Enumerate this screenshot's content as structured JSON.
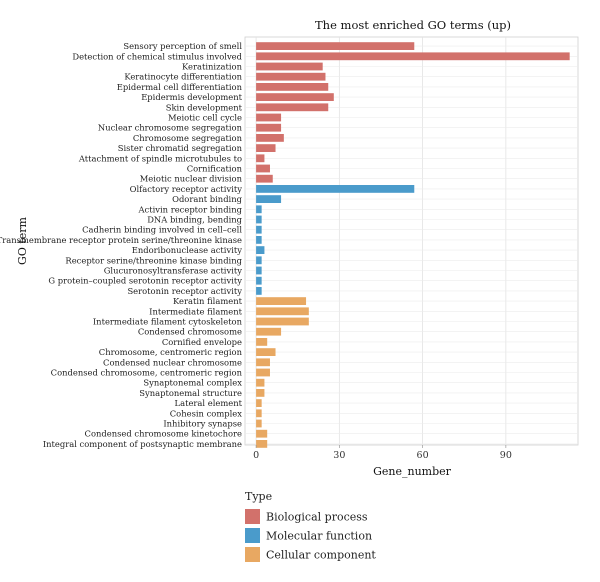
{
  "chart_data": {
    "type": "bar",
    "orientation": "horizontal",
    "title": "The most enriched GO terms (up)",
    "xlabel": "Gene_number",
    "ylabel": "GO term",
    "xlim": [
      -4,
      116
    ],
    "xticks": [
      0,
      30,
      60,
      90
    ],
    "grid": true,
    "legend": {
      "title": "Type",
      "position": "bottom-left",
      "entries": [
        {
          "name": "Biological process",
          "color": "#d2716b"
        },
        {
          "name": "Molecular function",
          "color": "#4a9bcb"
        },
        {
          "name": "Cellular component",
          "color": "#e8a862"
        }
      ]
    },
    "categories": [
      "Sensory perception of smell",
      "Detection of chemical stimulus involved",
      "Keratinization",
      "Keratinocyte differentiation",
      "Epidermal cell differentiation",
      "Epidermis development",
      "Skin development",
      "Meiotic cell cycle",
      "Nuclear chromosome segregation",
      "Chromosome segregation",
      "Sister chromatid segregation",
      "Attachment of spindle microtubules to",
      "Cornification",
      "Meiotic nuclear division",
      "Olfactory receptor activity",
      "Odorant binding",
      "Activin receptor binding",
      "DNA binding, bending",
      "Cadherin binding involved in cell–cell",
      "Transmembrane receptor protein serine/threonine kinase",
      "Endoribonuclease activity",
      "Receptor serine/threonine kinase binding",
      "Glucuronosyltransferase activity",
      "G protein–coupled serotonin receptor activity",
      "Serotonin receptor activity",
      "Keratin filament",
      "Intermediate filament",
      "Intermediate filament cytoskeleton",
      "Condensed chromosome",
      "Cornified envelope",
      "Chromosome, centromeric region",
      "Condensed nuclear chromosome",
      "Condensed chromosome, centromeric region",
      "Synaptonemal complex",
      "Synaptonemal structure",
      "Lateral element",
      "Cohesin complex",
      "Inhibitory synapse",
      "Condensed chromosome kinetochore",
      "Integral component of postsynaptic membrane"
    ],
    "values": [
      57,
      113,
      24,
      25,
      26,
      28,
      26,
      9,
      9,
      10,
      7,
      3,
      5,
      6,
      57,
      9,
      2,
      2,
      2,
      2,
      3,
      2,
      2,
      2,
      2,
      18,
      19,
      19,
      9,
      4,
      7,
      5,
      5,
      3,
      3,
      2,
      2,
      2,
      4,
      4
    ],
    "types": [
      "Biological process",
      "Biological process",
      "Biological process",
      "Biological process",
      "Biological process",
      "Biological process",
      "Biological process",
      "Biological process",
      "Biological process",
      "Biological process",
      "Biological process",
      "Biological process",
      "Biological process",
      "Biological process",
      "Molecular function",
      "Molecular function",
      "Molecular function",
      "Molecular function",
      "Molecular function",
      "Molecular function",
      "Molecular function",
      "Molecular function",
      "Molecular function",
      "Molecular function",
      "Molecular function",
      "Cellular component",
      "Cellular component",
      "Cellular component",
      "Cellular component",
      "Cellular component",
      "Cellular component",
      "Cellular component",
      "Cellular component",
      "Cellular component",
      "Cellular component",
      "Cellular component",
      "Cellular component",
      "Cellular component",
      "Cellular component",
      "Cellular component"
    ]
  }
}
